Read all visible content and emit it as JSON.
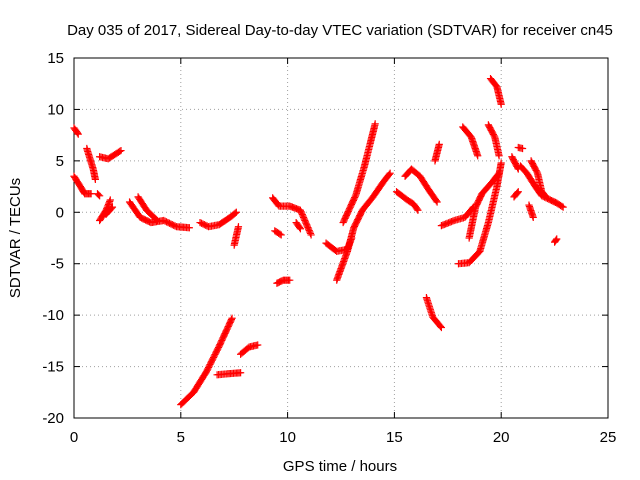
{
  "chart_data": {
    "type": "scatter",
    "title": "Day 035 of 2017, Sidereal Day-to-day VTEC variation (SDTVAR) for receiver cn45",
    "xlabel": "GPS time / hours",
    "ylabel": "SDTVAR / TECUs",
    "xlim": [
      0,
      25
    ],
    "ylim": [
      -20,
      15
    ],
    "xticks": [
      0,
      5,
      10,
      15,
      20,
      25
    ],
    "yticks": [
      -20,
      -15,
      -10,
      -5,
      0,
      5,
      10,
      15
    ],
    "xtick_labels": [
      "0",
      "5",
      "10",
      "15",
      "20",
      "25"
    ],
    "ytick_labels": [
      "-20",
      "-15",
      "-10",
      "-5",
      "0",
      "5",
      "10",
      "15"
    ],
    "grid": true,
    "marker": "plus",
    "marker_color": "#ff0000",
    "segments": [
      [
        [
          0.0,
          8.2
        ],
        [
          0.2,
          7.6
        ]
      ],
      [
        [
          0.0,
          3.5
        ],
        [
          0.3,
          2.5
        ],
        [
          0.5,
          1.8
        ],
        [
          0.8,
          1.8
        ]
      ],
      [
        [
          0.6,
          6.2
        ],
        [
          0.9,
          4.2
        ],
        [
          1.0,
          3.2
        ]
      ],
      [
        [
          1.1,
          1.8
        ],
        [
          1.2,
          1.6
        ]
      ],
      [
        [
          1.2,
          -0.8
        ],
        [
          1.5,
          0.2
        ],
        [
          1.7,
          1.2
        ]
      ],
      [
        [
          1.2,
          5.4
        ],
        [
          1.6,
          5.2
        ],
        [
          1.9,
          5.6
        ],
        [
          2.2,
          6.0
        ]
      ],
      [
        [
          1.5,
          -0.2
        ],
        [
          1.8,
          0.5
        ]
      ],
      [
        [
          2.6,
          1.0
        ],
        [
          3.1,
          -0.5
        ],
        [
          3.6,
          -1.0
        ],
        [
          4.2,
          -0.8
        ],
        [
          4.8,
          -1.4
        ],
        [
          5.4,
          -1.5
        ]
      ],
      [
        [
          3.0,
          1.5
        ],
        [
          3.4,
          0.2
        ],
        [
          3.9,
          -0.8
        ]
      ],
      [
        [
          5.9,
          -1.0
        ],
        [
          6.3,
          -1.4
        ],
        [
          6.8,
          -1.2
        ],
        [
          7.3,
          -0.5
        ],
        [
          7.6,
          0.0
        ]
      ],
      [
        [
          7.5,
          -3.2
        ],
        [
          7.7,
          -1.4
        ]
      ],
      [
        [
          5.0,
          -18.7
        ],
        [
          5.6,
          -17.5
        ],
        [
          6.2,
          -15.5
        ],
        [
          6.8,
          -13.0
        ],
        [
          7.4,
          -10.3
        ]
      ],
      [
        [
          6.7,
          -15.8
        ],
        [
          7.2,
          -15.7
        ],
        [
          7.8,
          -15.6
        ]
      ],
      [
        [
          7.8,
          -13.8
        ],
        [
          8.2,
          -13.1
        ],
        [
          8.6,
          -12.9
        ]
      ],
      [
        [
          9.5,
          -6.9
        ],
        [
          9.8,
          -6.6
        ],
        [
          10.1,
          -6.6
        ]
      ],
      [
        [
          9.3,
          1.4
        ],
        [
          9.6,
          0.6
        ],
        [
          10.1,
          0.6
        ],
        [
          10.6,
          0.2
        ],
        [
          11.1,
          -2.2
        ]
      ],
      [
        [
          9.4,
          -1.8
        ],
        [
          9.7,
          -2.2
        ]
      ],
      [
        [
          10.4,
          -1.0
        ],
        [
          10.6,
          -1.6
        ]
      ],
      [
        [
          11.8,
          -3.0
        ],
        [
          12.3,
          -3.8
        ],
        [
          12.8,
          -3.6
        ],
        [
          13.0,
          -2.5
        ]
      ],
      [
        [
          12.3,
          -6.6
        ],
        [
          12.8,
          -3.8
        ],
        [
          13.1,
          -1.5
        ],
        [
          13.5,
          0.2
        ],
        [
          14.0,
          1.5
        ],
        [
          14.5,
          3.0
        ],
        [
          14.8,
          3.8
        ]
      ],
      [
        [
          12.6,
          -1.0
        ],
        [
          13.2,
          1.7
        ],
        [
          13.6,
          4.5
        ],
        [
          14.1,
          8.6
        ]
      ],
      [
        [
          15.1,
          2.0
        ],
        [
          15.6,
          1.2
        ],
        [
          15.9,
          0.8
        ],
        [
          16.1,
          0.2
        ]
      ],
      [
        [
          15.5,
          3.5
        ],
        [
          15.8,
          4.2
        ],
        [
          16.2,
          3.5
        ],
        [
          16.6,
          2.2
        ],
        [
          17.0,
          1.0
        ]
      ],
      [
        [
          16.9,
          5.0
        ],
        [
          17.1,
          6.6
        ]
      ],
      [
        [
          16.5,
          -8.3
        ],
        [
          16.8,
          -10.2
        ],
        [
          17.2,
          -11.2
        ]
      ],
      [
        [
          17.2,
          -1.3
        ],
        [
          17.8,
          -0.8
        ],
        [
          18.3,
          -0.5
        ],
        [
          18.7,
          0.5
        ]
      ],
      [
        [
          18.2,
          8.3
        ],
        [
          18.6,
          7.3
        ],
        [
          18.9,
          5.5
        ]
      ],
      [
        [
          18.0,
          -5.0
        ],
        [
          18.5,
          -4.9
        ],
        [
          19.0,
          -3.8
        ],
        [
          19.4,
          -1.0
        ],
        [
          19.8,
          2.5
        ],
        [
          20.0,
          4.8
        ]
      ],
      [
        [
          18.5,
          -2.5
        ],
        [
          18.8,
          0.5
        ],
        [
          19.1,
          1.8
        ],
        [
          19.6,
          3.0
        ],
        [
          19.9,
          3.8
        ]
      ],
      [
        [
          19.4,
          8.5
        ],
        [
          19.7,
          7.3
        ],
        [
          19.9,
          5.5
        ]
      ],
      [
        [
          19.5,
          13.0
        ],
        [
          19.8,
          12.2
        ],
        [
          20.0,
          10.5
        ]
      ],
      [
        [
          20.5,
          5.4
        ],
        [
          20.8,
          4.2
        ]
      ],
      [
        [
          20.6,
          1.5
        ],
        [
          20.8,
          2.0
        ]
      ],
      [
        [
          20.8,
          6.3
        ],
        [
          21.0,
          6.2
        ]
      ],
      [
        [
          20.9,
          4.5
        ],
        [
          21.2,
          3.8
        ],
        [
          21.6,
          2.5
        ],
        [
          21.9,
          1.6
        ],
        [
          22.3,
          1.2
        ],
        [
          22.6,
          0.9
        ],
        [
          22.9,
          0.5
        ]
      ],
      [
        [
          21.4,
          5.0
        ],
        [
          21.7,
          3.8
        ],
        [
          21.9,
          2.0
        ],
        [
          22.1,
          1.5
        ]
      ],
      [
        [
          21.3,
          0.7
        ],
        [
          21.5,
          -0.5
        ]
      ],
      [
        [
          22.5,
          -2.9
        ],
        [
          22.6,
          -2.6
        ]
      ]
    ]
  }
}
